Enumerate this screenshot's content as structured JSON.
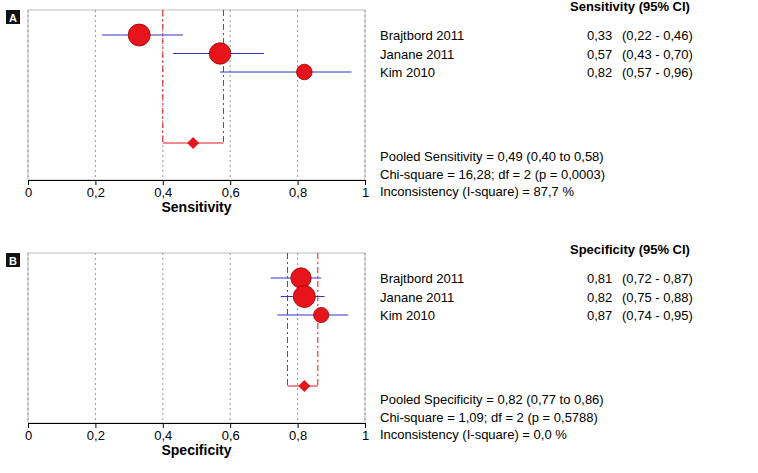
{
  "chart_data": [
    {
      "type": "forest",
      "panel": "A",
      "column_header": "Sensitivity (95% CI)",
      "x_label": "Sensitivity",
      "studies": [
        "Brajtbord 2011",
        "Janane 2011",
        "Kim 2010"
      ],
      "values": [
        0.33,
        0.57,
        0.82
      ],
      "value_labels": [
        "0,33",
        "0,57",
        "0,82"
      ],
      "lower": [
        0.22,
        0.43,
        0.57
      ],
      "upper": [
        0.46,
        0.7,
        0.96
      ],
      "ci_labels": [
        "(0,22 - 0,46)",
        "(0,43 - 0,70)",
        "(0,57 - 0,96)"
      ],
      "weights": [
        40,
        38,
        20
      ],
      "pooled": {
        "value": 0.49,
        "lower": 0.4,
        "upper": 0.58,
        "label": "Pooled Sensitivity = 0,49 (0,40 to 0,58)"
      },
      "heterogeneity": [
        "Chi-square = 16,28; df = 2 (p = 0,0003)",
        "Inconsistency (I-square) = 87,7 %"
      ],
      "xlim": [
        0,
        1
      ],
      "xticks": [
        0,
        {
          "value": 0.2,
          "label": "0,2"
        },
        {
          "value": 0.4,
          "label": "0,4"
        },
        {
          "value": 0.6,
          "label": "0,6"
        },
        {
          "value": 0.8,
          "label": "0,8"
        },
        1
      ],
      "grid": true,
      "color": "#e8141b"
    },
    {
      "type": "forest",
      "panel": "B",
      "column_header": "Specificity (95% CI)",
      "x_label": "Specificity",
      "studies": [
        "Brajtbord 2011",
        "Janane 2011",
        "Kim 2010"
      ],
      "values": [
        0.81,
        0.82,
        0.87
      ],
      "value_labels": [
        "0,81",
        "0,82",
        "0,87"
      ],
      "lower": [
        0.72,
        0.75,
        0.74
      ],
      "upper": [
        0.87,
        0.88,
        0.95
      ],
      "ci_labels": [
        "(0,72 - 0,87)",
        "(0,75 - 0,88)",
        "(0,74 - 0,95)"
      ],
      "weights": [
        36,
        42,
        20
      ],
      "pooled": {
        "value": 0.82,
        "lower": 0.77,
        "upper": 0.86,
        "label": "Pooled Specificity = 0,82 (0,77 to 0,86)"
      },
      "heterogeneity": [
        "Chi-square = 1,09; df = 2 (p = 0,5788)",
        "Inconsistency (I-square) = 0,0 %"
      ],
      "xlim": [
        0,
        1
      ],
      "xticks": [
        0,
        {
          "value": 0.2,
          "label": "0,2"
        },
        {
          "value": 0.4,
          "label": "0,4"
        },
        {
          "value": 0.6,
          "label": "0,6"
        },
        {
          "value": 0.8,
          "label": "0,8"
        },
        1
      ],
      "grid": true,
      "color": "#e8141b"
    }
  ]
}
